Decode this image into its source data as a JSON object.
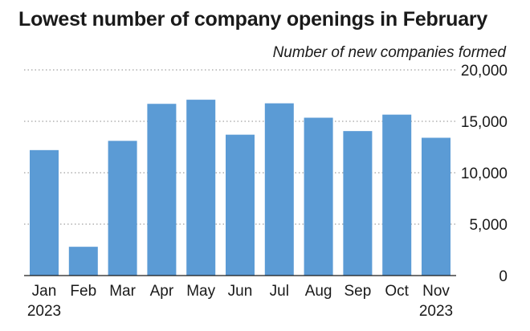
{
  "chart_data": {
    "type": "bar",
    "title": "Lowest number of company openings in February",
    "unit_label": "Number of new companies formed",
    "categories": [
      "Jan",
      "Feb",
      "Mar",
      "Apr",
      "May",
      "Jun",
      "Jul",
      "Aug",
      "Sep",
      "Oct",
      "Nov"
    ],
    "year_labels": {
      "first": "2023",
      "last": "2023"
    },
    "values": [
      12200,
      2800,
      13100,
      16700,
      17100,
      13700,
      16750,
      15350,
      14050,
      15650,
      13400
    ],
    "ylim": [
      0,
      20000
    ],
    "yticks": [
      0,
      5000,
      10000,
      15000,
      20000
    ],
    "ytick_labels": [
      "0",
      "5,000",
      "10,000",
      "15,000",
      "20,000"
    ],
    "grid": true,
    "colors": {
      "bar": "#5b9bd5",
      "grid": "#8a8a8a",
      "text": "#1a1a1a"
    }
  }
}
